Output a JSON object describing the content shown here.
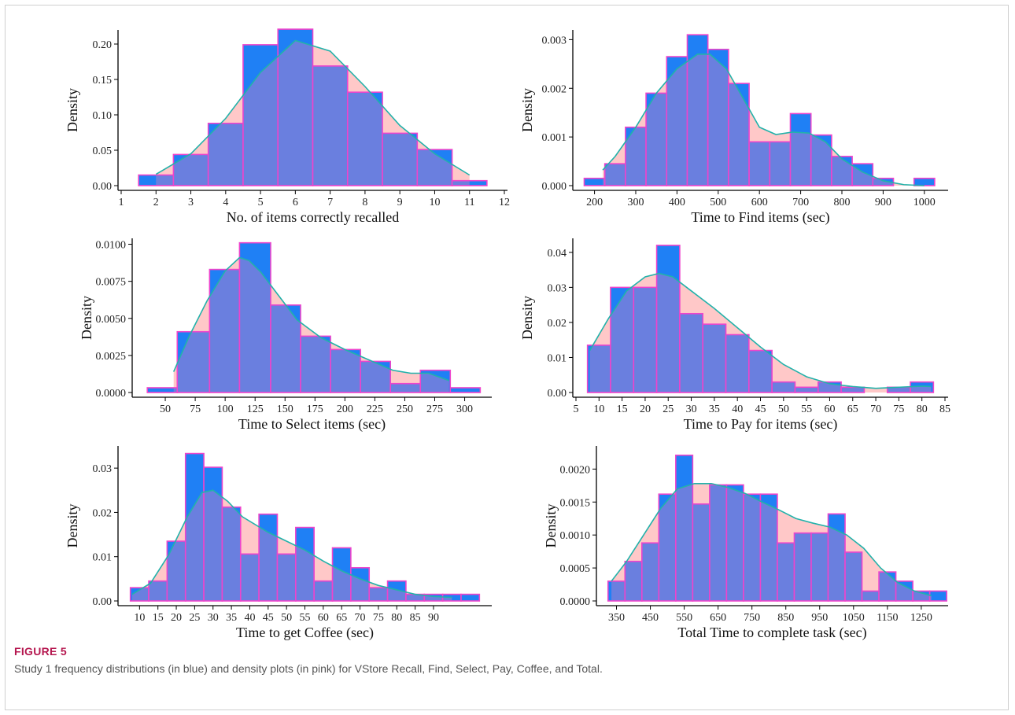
{
  "figure": {
    "label": "FIGURE 5",
    "caption": "Study 1 frequency distributions (in blue) and density plots (in pink) for VStore Recall, Find, Select, Pay, Coffee, and Total."
  },
  "colors": {
    "bar_fill": "#1f80f5",
    "bar_stroke": "#ee44cc",
    "density_fill": "#ffc8c8",
    "density_line": "#22b2aa",
    "overlap": "#6a7fdf"
  },
  "chart_data": [
    {
      "type": "bar",
      "title": "",
      "xlabel": "No. of items correctly recalled",
      "ylabel": "Density",
      "xlim": [
        1,
        12
      ],
      "ylim": [
        0,
        0.22
      ],
      "xticks": [
        1,
        2,
        3,
        4,
        5,
        6,
        7,
        8,
        9,
        10,
        11,
        12
      ],
      "yticks": [
        "0.00",
        "0.05",
        "0.10",
        "0.15",
        "0.20"
      ],
      "bins": [
        {
          "x0": 1.5,
          "x1": 2.5,
          "value": 0.015
        },
        {
          "x0": 2.5,
          "x1": 3.5,
          "value": 0.044
        },
        {
          "x0": 3.5,
          "x1": 4.5,
          "value": 0.088
        },
        {
          "x0": 4.5,
          "x1": 5.5,
          "value": 0.199
        },
        {
          "x0": 5.5,
          "x1": 6.5,
          "value": 0.221
        },
        {
          "x0": 6.5,
          "x1": 7.5,
          "value": 0.169
        },
        {
          "x0": 7.5,
          "x1": 8.5,
          "value": 0.132
        },
        {
          "x0": 8.5,
          "x1": 9.5,
          "value": 0.074
        },
        {
          "x0": 9.5,
          "x1": 10.5,
          "value": 0.051
        },
        {
          "x0": 10.5,
          "x1": 11.5,
          "value": 0.007
        }
      ],
      "density": [
        [
          2,
          0.016
        ],
        [
          3,
          0.045
        ],
        [
          4,
          0.095
        ],
        [
          5,
          0.16
        ],
        [
          6,
          0.205
        ],
        [
          7,
          0.19
        ],
        [
          8,
          0.14
        ],
        [
          9,
          0.085
        ],
        [
          10,
          0.045
        ],
        [
          11,
          0.015
        ]
      ]
    },
    {
      "type": "bar",
      "title": "",
      "xlabel": "Time to Find items (sec)",
      "ylabel": "Density",
      "xlim": [
        155,
        1050
      ],
      "ylim": [
        0,
        0.0032
      ],
      "xticks": [
        200,
        300,
        400,
        500,
        600,
        700,
        800,
        900,
        1000
      ],
      "yticks": [
        "0.000",
        "0.001",
        "0.002",
        "0.003"
      ],
      "bins": [
        {
          "x0": 175,
          "x1": 225,
          "value": 0.00015
        },
        {
          "x0": 225,
          "x1": 275,
          "value": 0.00045
        },
        {
          "x0": 275,
          "x1": 325,
          "value": 0.0012
        },
        {
          "x0": 325,
          "x1": 375,
          "value": 0.0019
        },
        {
          "x0": 375,
          "x1": 425,
          "value": 0.00265
        },
        {
          "x0": 425,
          "x1": 475,
          "value": 0.0031
        },
        {
          "x0": 475,
          "x1": 525,
          "value": 0.0028
        },
        {
          "x0": 525,
          "x1": 575,
          "value": 0.0021
        },
        {
          "x0": 575,
          "x1": 625,
          "value": 0.0009
        },
        {
          "x0": 625,
          "x1": 675,
          "value": 0.0009
        },
        {
          "x0": 675,
          "x1": 725,
          "value": 0.00148
        },
        {
          "x0": 725,
          "x1": 775,
          "value": 0.00104
        },
        {
          "x0": 775,
          "x1": 825,
          "value": 0.0006
        },
        {
          "x0": 825,
          "x1": 875,
          "value": 0.00045
        },
        {
          "x0": 875,
          "x1": 925,
          "value": 0.00015
        },
        {
          "x0": 925,
          "x1": 975,
          "value": 0.0
        },
        {
          "x0": 975,
          "x1": 1025,
          "value": 0.00015
        }
      ],
      "density": [
        [
          220,
          0.00032
        ],
        [
          250,
          0.0006
        ],
        [
          300,
          0.0012
        ],
        [
          350,
          0.0019
        ],
        [
          400,
          0.0024
        ],
        [
          450,
          0.0027
        ],
        [
          480,
          0.0027
        ],
        [
          520,
          0.0024
        ],
        [
          560,
          0.0018
        ],
        [
          600,
          0.0012
        ],
        [
          640,
          0.00105
        ],
        [
          680,
          0.0011
        ],
        [
          720,
          0.00108
        ],
        [
          760,
          0.0009
        ],
        [
          800,
          0.00055
        ],
        [
          850,
          0.00028
        ],
        [
          900,
          0.0001
        ],
        [
          950,
          2e-05
        ],
        [
          1000,
          0.0
        ]
      ]
    },
    {
      "type": "bar",
      "title": "",
      "xlabel": "Time to Select items (sec)",
      "ylabel": "Density",
      "xlim": [
        25,
        320
      ],
      "ylim": [
        0,
        0.0104
      ],
      "xticks": [
        50,
        75,
        100,
        125,
        150,
        175,
        200,
        225,
        250,
        275,
        300
      ],
      "yticks": [
        "0.0000",
        "0.0025",
        "0.0050",
        "0.0075",
        "0.0100"
      ],
      "bins": [
        {
          "x0": 35,
          "x1": 60,
          "value": 0.00032
        },
        {
          "x0": 60,
          "x1": 87,
          "value": 0.0041
        },
        {
          "x0": 87,
          "x1": 112,
          "value": 0.0083
        },
        {
          "x0": 112,
          "x1": 138,
          "value": 0.0101
        },
        {
          "x0": 138,
          "x1": 163,
          "value": 0.0059
        },
        {
          "x0": 163,
          "x1": 188,
          "value": 0.0038
        },
        {
          "x0": 188,
          "x1": 213,
          "value": 0.0029
        },
        {
          "x0": 213,
          "x1": 238,
          "value": 0.0021
        },
        {
          "x0": 238,
          "x1": 263,
          "value": 0.0006
        },
        {
          "x0": 263,
          "x1": 288,
          "value": 0.0015
        },
        {
          "x0": 288,
          "x1": 313,
          "value": 0.00032
        }
      ],
      "density": [
        [
          57,
          0.0014
        ],
        [
          70,
          0.0038
        ],
        [
          85,
          0.0062
        ],
        [
          100,
          0.0082
        ],
        [
          112,
          0.0091
        ],
        [
          120,
          0.0089
        ],
        [
          130,
          0.0081
        ],
        [
          145,
          0.0065
        ],
        [
          160,
          0.0049
        ],
        [
          180,
          0.0037
        ],
        [
          200,
          0.0029
        ],
        [
          220,
          0.0022
        ],
        [
          240,
          0.0015
        ],
        [
          255,
          0.0013
        ],
        [
          270,
          0.0013
        ],
        [
          287,
          0.0008
        ]
      ]
    },
    {
      "type": "bar",
      "title": "",
      "xlabel": "Time to Pay for items (sec)",
      "ylabel": "Density",
      "xlim": [
        5,
        85
      ],
      "ylim": [
        0,
        0.044
      ],
      "xticks": [
        5,
        10,
        15,
        20,
        25,
        30,
        35,
        40,
        45,
        50,
        55,
        60,
        65,
        70,
        75,
        80,
        85
      ],
      "yticks": [
        "0.00",
        "0.01",
        "0.02",
        "0.03",
        "0.04"
      ],
      "bins": [
        {
          "x0": 7.5,
          "x1": 12.5,
          "value": 0.0135
        },
        {
          "x0": 12.5,
          "x1": 17.5,
          "value": 0.03
        },
        {
          "x0": 17.5,
          "x1": 22.5,
          "value": 0.03
        },
        {
          "x0": 22.5,
          "x1": 27.5,
          "value": 0.042
        },
        {
          "x0": 27.5,
          "x1": 32.5,
          "value": 0.0225
        },
        {
          "x0": 32.5,
          "x1": 37.5,
          "value": 0.0195
        },
        {
          "x0": 37.5,
          "x1": 42.5,
          "value": 0.0165
        },
        {
          "x0": 42.5,
          "x1": 47.5,
          "value": 0.012
        },
        {
          "x0": 47.5,
          "x1": 52.5,
          "value": 0.003
        },
        {
          "x0": 52.5,
          "x1": 57.5,
          "value": 0.0015
        },
        {
          "x0": 57.5,
          "x1": 62.5,
          "value": 0.003
        },
        {
          "x0": 62.5,
          "x1": 67.5,
          "value": 0.0015
        },
        {
          "x0": 67.5,
          "x1": 72.5,
          "value": 0.0
        },
        {
          "x0": 72.5,
          "x1": 77.5,
          "value": 0.0015
        },
        {
          "x0": 77.5,
          "x1": 82.5,
          "value": 0.003
        }
      ],
      "density": [
        [
          8,
          0.012
        ],
        [
          12,
          0.021
        ],
        [
          16,
          0.029
        ],
        [
          20,
          0.033
        ],
        [
          23,
          0.034
        ],
        [
          26,
          0.033
        ],
        [
          30,
          0.029
        ],
        [
          35,
          0.024
        ],
        [
          40,
          0.0185
        ],
        [
          45,
          0.013
        ],
        [
          50,
          0.008
        ],
        [
          55,
          0.0045
        ],
        [
          60,
          0.0025
        ],
        [
          65,
          0.0017
        ],
        [
          70,
          0.0012
        ],
        [
          75,
          0.0015
        ],
        [
          80,
          0.0018
        ],
        [
          82,
          0.0017
        ]
      ]
    },
    {
      "type": "bar",
      "title": "",
      "xlabel": "Time to get Coffee (sec)",
      "ylabel": "Density",
      "xlim": [
        5,
        105
      ],
      "ylim": [
        0,
        0.035
      ],
      "xticks": [
        10,
        15,
        20,
        25,
        30,
        35,
        40,
        45,
        50,
        55,
        60,
        65,
        70,
        75,
        80,
        85,
        90
      ],
      "yticks": [
        "0.00",
        "0.01",
        "0.02",
        "0.03"
      ],
      "bins": [
        {
          "x0": 7.5,
          "x1": 12.5,
          "value": 0.003
        },
        {
          "x0": 12.5,
          "x1": 17.5,
          "value": 0.0045
        },
        {
          "x0": 17.5,
          "x1": 22.5,
          "value": 0.0135
        },
        {
          "x0": 22.5,
          "x1": 27.5,
          "value": 0.0333
        },
        {
          "x0": 27.5,
          "x1": 32.5,
          "value": 0.0302
        },
        {
          "x0": 32.5,
          "x1": 37.5,
          "value": 0.0212
        },
        {
          "x0": 37.5,
          "x1": 42.5,
          "value": 0.0106
        },
        {
          "x0": 42.5,
          "x1": 47.5,
          "value": 0.0196
        },
        {
          "x0": 47.5,
          "x1": 52.5,
          "value": 0.0106
        },
        {
          "x0": 52.5,
          "x1": 57.5,
          "value": 0.0166
        },
        {
          "x0": 57.5,
          "x1": 62.5,
          "value": 0.0045
        },
        {
          "x0": 62.5,
          "x1": 67.5,
          "value": 0.012
        },
        {
          "x0": 67.5,
          "x1": 72.5,
          "value": 0.0075
        },
        {
          "x0": 72.5,
          "x1": 77.5,
          "value": 0.003
        },
        {
          "x0": 77.5,
          "x1": 82.5,
          "value": 0.0045
        },
        {
          "x0": 82.5,
          "x1": 87.5,
          "value": 0.0015
        },
        {
          "x0": 87.5,
          "x1": 92.5,
          "value": 0.0015
        },
        {
          "x0": 92.5,
          "x1": 97.5,
          "value": 0.0015
        },
        {
          "x0": 97.5,
          "x1": 102.5,
          "value": 0.0015
        }
      ],
      "density": [
        [
          8,
          0.0015
        ],
        [
          13,
          0.004
        ],
        [
          18,
          0.0105
        ],
        [
          23,
          0.019
        ],
        [
          27,
          0.0245
        ],
        [
          30,
          0.025
        ],
        [
          34,
          0.0225
        ],
        [
          38,
          0.019
        ],
        [
          45,
          0.0155
        ],
        [
          50,
          0.0135
        ],
        [
          55,
          0.0115
        ],
        [
          60,
          0.009
        ],
        [
          65,
          0.0068
        ],
        [
          70,
          0.005
        ],
        [
          75,
          0.0035
        ],
        [
          80,
          0.0025
        ],
        [
          85,
          0.0015
        ],
        [
          90,
          0.001
        ],
        [
          95,
          0.0008
        ]
      ]
    },
    {
      "type": "bar",
      "title": "",
      "xlabel": "Total Time to complete task (sec)",
      "ylabel": "Density",
      "xlim": [
        300,
        1320
      ],
      "ylim": [
        0,
        0.00235
      ],
      "xticks": [
        350,
        450,
        550,
        650,
        750,
        850,
        950,
        1050,
        1150,
        1250
      ],
      "yticks": [
        "0.0000",
        "0.0005",
        "0.0010",
        "0.0015",
        "0.0020"
      ],
      "bins": [
        {
          "x0": 325,
          "x1": 375,
          "value": 0.0003
        },
        {
          "x0": 375,
          "x1": 425,
          "value": 0.0006
        },
        {
          "x0": 425,
          "x1": 475,
          "value": 0.00088
        },
        {
          "x0": 475,
          "x1": 525,
          "value": 0.00162
        },
        {
          "x0": 525,
          "x1": 575,
          "value": 0.00221
        },
        {
          "x0": 575,
          "x1": 625,
          "value": 0.00147
        },
        {
          "x0": 625,
          "x1": 675,
          "value": 0.00176
        },
        {
          "x0": 675,
          "x1": 725,
          "value": 0.00176
        },
        {
          "x0": 725,
          "x1": 775,
          "value": 0.00162
        },
        {
          "x0": 775,
          "x1": 825,
          "value": 0.00162
        },
        {
          "x0": 825,
          "x1": 875,
          "value": 0.00088
        },
        {
          "x0": 875,
          "x1": 925,
          "value": 0.00103
        },
        {
          "x0": 925,
          "x1": 975,
          "value": 0.00103
        },
        {
          "x0": 975,
          "x1": 1025,
          "value": 0.00132
        },
        {
          "x0": 1025,
          "x1": 1075,
          "value": 0.00074
        },
        {
          "x0": 1075,
          "x1": 1125,
          "value": 0.00015
        },
        {
          "x0": 1125,
          "x1": 1175,
          "value": 0.00044
        },
        {
          "x0": 1175,
          "x1": 1225,
          "value": 0.0003
        },
        {
          "x0": 1225,
          "x1": 1275,
          "value": 0.00015
        },
        {
          "x0": 1275,
          "x1": 1325,
          "value": 0.00015
        }
      ],
      "density": [
        [
          335,
          0.0003
        ],
        [
          380,
          0.0006
        ],
        [
          430,
          0.001
        ],
        [
          480,
          0.0014
        ],
        [
          530,
          0.0017
        ],
        [
          580,
          0.00178
        ],
        [
          630,
          0.00178
        ],
        [
          680,
          0.00172
        ],
        [
          730,
          0.00163
        ],
        [
          780,
          0.0015
        ],
        [
          830,
          0.00138
        ],
        [
          880,
          0.00125
        ],
        [
          930,
          0.00118
        ],
        [
          980,
          0.00112
        ],
        [
          1030,
          0.001
        ],
        [
          1080,
          0.0008
        ],
        [
          1130,
          0.0005
        ],
        [
          1180,
          0.00028
        ],
        [
          1230,
          0.00015
        ],
        [
          1280,
          8e-05
        ]
      ]
    }
  ]
}
